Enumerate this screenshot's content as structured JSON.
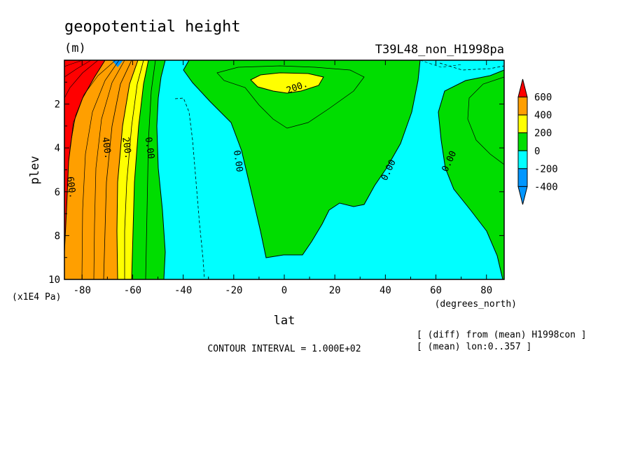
{
  "header": {
    "title": "geopotential height",
    "units": "(m)",
    "experiment": "T39L48_non_H1998pa"
  },
  "footer": {
    "contour_interval": "CONTOUR INTERVAL = 1.000E+02",
    "note_diff": "[ (diff) from (mean) H1998con ]",
    "note_mean": "[ (mean) lon:0..357 ]"
  },
  "chart_data": {
    "type": "contour",
    "title": "geopotential height",
    "units": "(m)",
    "xlabel": "lat",
    "xunits": "(degrees_north)",
    "ylabel": "plev",
    "yunits": "(x1E4 Pa)",
    "xlim": [
      -87,
      87
    ],
    "ylim": [
      10,
      0
    ],
    "xticks": [
      -80,
      -60,
      -40,
      -20,
      0,
      20,
      40,
      60,
      80
    ],
    "xtick_labels": [
      "-80",
      "-60",
      "-40",
      "-20",
      "0",
      "20",
      "40",
      "60",
      "80"
    ],
    "yticks": [
      2,
      4,
      6,
      8,
      10
    ],
    "ytick_labels": [
      "2",
      "4",
      "6",
      "8",
      "10"
    ],
    "contour_interval": 100,
    "contour_labels": [
      {
        "text": "600.",
        "lat": -84,
        "plev": 5.8
      },
      {
        "text": "400.",
        "lat": -70,
        "plev": 4.0
      },
      {
        "text": "200.",
        "lat": -62,
        "plev": 4.0
      },
      {
        "text": "0.00",
        "lat": -53,
        "plev": 4.0
      },
      {
        "text": "0.00",
        "lat": -18,
        "plev": 4.6
      },
      {
        "text": "200.",
        "lat": 5,
        "plev": 1.2
      },
      {
        "text": "0.00",
        "lat": 41,
        "plev": 5.0
      },
      {
        "text": "0.00",
        "lat": 65,
        "plev": 4.6
      }
    ],
    "colorbar": {
      "levels": [
        "600",
        "400",
        "200",
        "0",
        "-200",
        "-400"
      ],
      "colors": [
        "#ff0000",
        "#ff9f00",
        "#ffff00",
        "#00dd00",
        "#00ffff",
        "#0096ff",
        "#0000ff"
      ],
      "top_color": "#ff0000",
      "bottom_color": "#0096ff"
    }
  }
}
